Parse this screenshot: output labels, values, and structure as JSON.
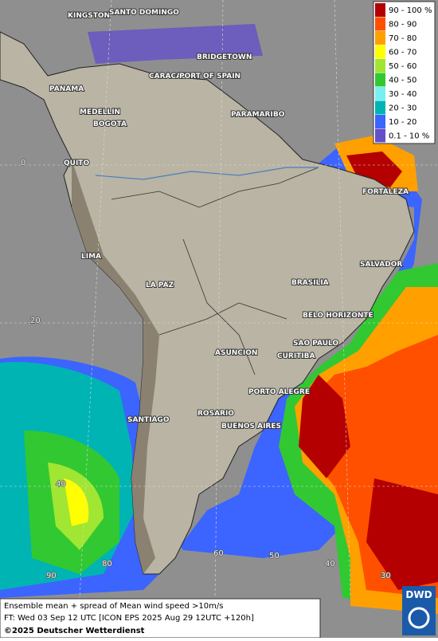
{
  "cities": [
    "KINGSTON",
    "SANTO DOMINGO",
    "BRIDGETOWN",
    "PANAMA",
    "CARACAS",
    "PORT OF SPAIN",
    "MEDELLIN",
    "BOGOTA",
    "PARAMARIBO",
    "QUITO",
    "FORTALEZA",
    "LIMA",
    "SALVADOR",
    "LA PAZ",
    "BRASILIA",
    "BELO HORIZONTE",
    "ASUNCION",
    "SAO PAULO",
    "CURITIBA",
    "PORTO ALEGRE",
    "ROSARIO",
    "SANTIAGO",
    "BUENOS AIRES"
  ],
  "graticule_labels": [
    "0",
    "20",
    "40",
    "90",
    "80",
    "60",
    "50",
    "40",
    "30"
  ],
  "legend": {
    "items": [
      {
        "label": "90 - 100 %",
        "color": "#b40000"
      },
      {
        "label": "80 - 90",
        "color": "#ff5000"
      },
      {
        "label": "70 - 80",
        "color": "#ffa000"
      },
      {
        "label": "60 - 70",
        "color": "#ffff00"
      },
      {
        "label": "50 - 60",
        "color": "#a0e632"
      },
      {
        "label": "40 - 50",
        "color": "#32c832"
      },
      {
        "label": "30 - 40",
        "color": "#78f0f0"
      },
      {
        "label": "20 - 30",
        "color": "#00b4b4"
      },
      {
        "label": "10 - 20",
        "color": "#3c64ff"
      },
      {
        "label": "0.1 - 10 %",
        "color": "#6450c8"
      }
    ]
  },
  "footer": {
    "lines": [
      "Ensemble mean + spread of Mean wind speed >10m/s",
      "FT: Wed 03 Sep 12 UTC [ICON EPS 2025 Aug 29 12UTC +120h]",
      "©2025 Deutscher Wetterdienst"
    ]
  },
  "logo": "DWD"
}
